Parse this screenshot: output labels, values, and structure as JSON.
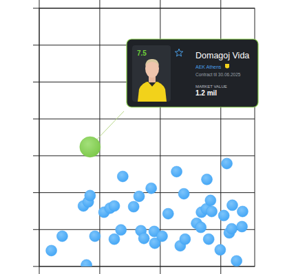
{
  "chart_data": {
    "type": "scatter",
    "xlim": [
      0,
      3.56
    ],
    "ylim": [
      0,
      7
    ],
    "xticks": [
      0,
      1,
      2,
      3
    ],
    "yticks": [
      0,
      1,
      2,
      3,
      4,
      5,
      6,
      7
    ],
    "grid": true,
    "tick_labels": false,
    "series": [
      {
        "color": "#42a5f5",
        "marker": "circle",
        "x": [
          0.2,
          0.38,
          0.78,
          0.92,
          0.73,
          0.81,
          0.84,
          1.07,
          1.17,
          1.24,
          1.38,
          1.24,
          1.35,
          1.56,
          1.65,
          1.68,
          1.73,
          1.85,
          1.9,
          1.91,
          2.03,
          2.13,
          2.27,
          2.39,
          2.33,
          2.41,
          2.6,
          2.67,
          2.68,
          2.77,
          2.76,
          2.83,
          2.85,
          2.8,
          2.99,
          3.05,
          3.1,
          3.14,
          3.19,
          3.18,
          3.26,
          3.35,
          3.36
        ],
        "values": [
          0.43,
          0.82,
          0.04,
          0.82,
          1.64,
          1.75,
          1.92,
          1.47,
          1.58,
          1.64,
          2.44,
          0.74,
          0.99,
          1.62,
          1.9,
          0.97,
          0.76,
          2.12,
          0.95,
          0.63,
          0.82,
          1.43,
          2.57,
          1.97,
          0.56,
          0.74,
          1.17,
          1.06,
          1.47,
          2.36,
          1.56,
          1.79,
          1.49,
          0.74,
          0.45,
          1.38,
          2.79,
          0.91,
          1.66,
          1.02,
          0.15,
          1.08,
          1.49
        ]
      },
      {
        "color": "#7cc84a",
        "marker": "circle",
        "x": [
          0.84
        ],
        "values": [
          3.24
        ]
      }
    ],
    "annotations": [
      {
        "rating": 7.5,
        "name": "Domagoj Vida",
        "club": "AEK Athens",
        "contract": "Contract til 30.06.2025",
        "market_value_label": "MARKET VALUE",
        "market_value": "1.2 mil"
      }
    ]
  }
}
